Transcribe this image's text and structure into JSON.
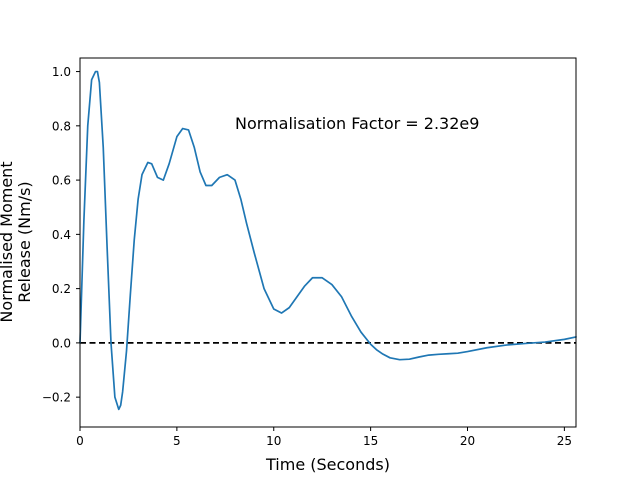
{
  "chart_data": {
    "type": "line",
    "title": "",
    "annotation": "Normalisation Factor = 2.32e9",
    "xlabel": "Time (Seconds)",
    "ylabel_lines": [
      "Normalised Moment",
      "Release (Nm/s)"
    ],
    "xlim": [
      0,
      25.6
    ],
    "ylim": [
      -0.31,
      1.05
    ],
    "xticks": [
      0,
      5,
      10,
      15,
      20,
      25
    ],
    "xtick_labels": [
      "0",
      "5",
      "10",
      "15",
      "20",
      "25"
    ],
    "yticks": [
      -0.2,
      0.0,
      0.2,
      0.4,
      0.6,
      0.8,
      1.0
    ],
    "ytick_labels": [
      "−0.2",
      "0.0",
      "0.2",
      "0.4",
      "0.6",
      "0.8",
      "1.0"
    ],
    "grid": false,
    "reference_line": {
      "y": 0,
      "style": "dashed",
      "color": "#000000"
    },
    "series": [
      {
        "color": "#1f77b4",
        "x": [
          0,
          0.2,
          0.4,
          0.6,
          0.8,
          0.9,
          1.0,
          1.2,
          1.4,
          1.6,
          1.8,
          2.0,
          2.1,
          2.2,
          2.4,
          2.6,
          2.8,
          3.0,
          3.2,
          3.5,
          3.7,
          4.0,
          4.3,
          4.6,
          5.0,
          5.3,
          5.6,
          5.9,
          6.2,
          6.5,
          6.8,
          7.2,
          7.6,
          8.0,
          8.3,
          8.6,
          9.0,
          9.5,
          10.0,
          10.4,
          10.8,
          11.2,
          11.6,
          12.0,
          12.5,
          13.0,
          13.5,
          14.0,
          14.5,
          15.0,
          15.3,
          15.6,
          16.0,
          16.5,
          17.0,
          17.5,
          18.0,
          18.5,
          19.0,
          19.5,
          20.0,
          21.0,
          22.0,
          23.0,
          24.0,
          25.0,
          25.6
        ],
        "y": [
          0.0,
          0.45,
          0.8,
          0.97,
          1.0,
          1.0,
          0.96,
          0.72,
          0.35,
          0.0,
          -0.2,
          -0.245,
          -0.23,
          -0.18,
          -0.03,
          0.18,
          0.38,
          0.53,
          0.62,
          0.665,
          0.66,
          0.61,
          0.6,
          0.66,
          0.76,
          0.79,
          0.785,
          0.72,
          0.63,
          0.58,
          0.58,
          0.61,
          0.62,
          0.6,
          0.53,
          0.44,
          0.33,
          0.2,
          0.125,
          0.11,
          0.13,
          0.17,
          0.21,
          0.24,
          0.24,
          0.215,
          0.17,
          0.1,
          0.04,
          -0.005,
          -0.025,
          -0.04,
          -0.055,
          -0.062,
          -0.06,
          -0.052,
          -0.045,
          -0.042,
          -0.04,
          -0.038,
          -0.032,
          -0.018,
          -0.008,
          -0.002,
          0.003,
          0.013,
          0.022
        ]
      }
    ]
  }
}
